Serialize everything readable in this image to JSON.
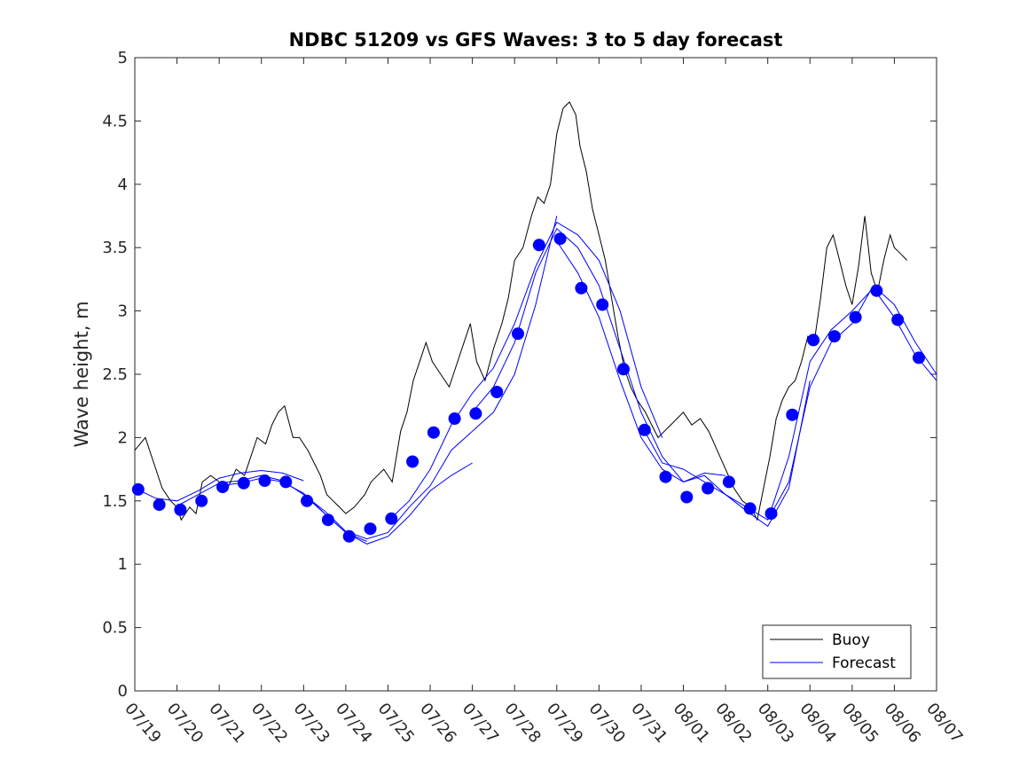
{
  "chart_data": {
    "type": "line",
    "title": "NDBC 51209 vs GFS Waves: 3 to 5 day forecast",
    "xlabel": "",
    "ylabel": "Wave height, m",
    "ylim": [
      0,
      5
    ],
    "y_ticks": [
      "0",
      "0.5",
      "1",
      "1.5",
      "2",
      "2.5",
      "3",
      "3.5",
      "4",
      "4.5",
      "5"
    ],
    "x_ticks": [
      "07/19",
      "07/20",
      "07/21",
      "07/22",
      "07/23",
      "07/24",
      "07/25",
      "07/26",
      "07/27",
      "07/28",
      "07/29",
      "07/30",
      "07/31",
      "08/01",
      "08/02",
      "08/03",
      "08/04",
      "08/05",
      "08/06",
      "08/07"
    ],
    "xlim_days": [
      0,
      19
    ],
    "legend": {
      "position": "bottom-right",
      "entries": [
        "Buoy",
        "Forecast"
      ]
    },
    "colors": {
      "buoy": "#000000",
      "forecast": "#0000ff"
    },
    "series": [
      {
        "name": "Buoy",
        "color": "#000000",
        "x_days": [
          0.0,
          0.25,
          0.45,
          0.65,
          0.85,
          1.0,
          1.1,
          1.3,
          1.45,
          1.6,
          1.8,
          2.0,
          2.2,
          2.4,
          2.6,
          2.8,
          2.9,
          3.1,
          3.25,
          3.4,
          3.55,
          3.75,
          3.9,
          4.1,
          4.25,
          4.4,
          4.55,
          4.7,
          4.85,
          5.0,
          5.2,
          5.45,
          5.6,
          5.75,
          5.9,
          6.1,
          6.2,
          6.3,
          6.45,
          6.6,
          6.75,
          6.9,
          7.05,
          7.25,
          7.45,
          7.6,
          7.8,
          7.95,
          8.1,
          8.3,
          8.5,
          8.7,
          8.85,
          9.0,
          9.2,
          9.4,
          9.55,
          9.7,
          9.85,
          10.0,
          10.15,
          10.3,
          10.45,
          10.55,
          10.7,
          10.85,
          11.0,
          11.15,
          11.3,
          11.45,
          11.6,
          11.75,
          11.9,
          12.1,
          12.25,
          12.4,
          12.55,
          12.7,
          12.85,
          13.0,
          13.2,
          13.4,
          13.6,
          13.8,
          14.0,
          14.2,
          14.4,
          14.6,
          14.75,
          14.9,
          15.05,
          15.2,
          15.35,
          15.5,
          15.65,
          15.8,
          15.95,
          16.1,
          16.25,
          16.4,
          16.55,
          16.7,
          16.85,
          17.0,
          17.15,
          17.3,
          17.45,
          17.6,
          17.75,
          17.9,
          18.0,
          18.15,
          18.3
        ],
        "values": [
          1.9,
          2.0,
          1.8,
          1.6,
          1.5,
          1.45,
          1.35,
          1.45,
          1.4,
          1.65,
          1.7,
          1.65,
          1.6,
          1.75,
          1.7,
          1.9,
          2.0,
          1.95,
          2.1,
          2.2,
          2.25,
          2.0,
          2.0,
          1.9,
          1.8,
          1.7,
          1.55,
          1.5,
          1.45,
          1.4,
          1.45,
          1.55,
          1.65,
          1.7,
          1.75,
          1.65,
          1.85,
          2.05,
          2.2,
          2.45,
          2.6,
          2.75,
          2.6,
          2.5,
          2.4,
          2.55,
          2.75,
          2.9,
          2.6,
          2.45,
          2.7,
          2.9,
          3.1,
          3.4,
          3.5,
          3.75,
          3.9,
          3.85,
          4.0,
          4.4,
          4.6,
          4.65,
          4.55,
          4.3,
          4.1,
          3.8,
          3.6,
          3.4,
          3.1,
          2.8,
          2.55,
          2.4,
          2.3,
          2.2,
          2.1,
          2.0,
          2.05,
          2.1,
          2.15,
          2.2,
          2.1,
          2.15,
          2.05,
          1.9,
          1.75,
          1.6,
          1.5,
          1.45,
          1.35,
          1.6,
          1.85,
          2.15,
          2.3,
          2.4,
          2.45,
          2.6,
          2.8,
          2.75,
          3.1,
          3.5,
          3.6,
          3.4,
          3.2,
          3.05,
          3.35,
          3.75,
          3.3,
          3.15,
          3.4,
          3.6,
          3.5,
          3.45,
          3.4
        ]
      },
      {
        "name": "Forecast",
        "color": "#0000ff",
        "markers_x_days": [
          0.08,
          0.58,
          1.08,
          1.58,
          2.08,
          2.58,
          3.08,
          3.58,
          4.08,
          4.58,
          5.08,
          5.58,
          6.08,
          6.58,
          7.08,
          7.58,
          8.08,
          8.58,
          9.08,
          9.58,
          10.08,
          10.58,
          11.08,
          11.58,
          12.08,
          12.58,
          13.08,
          13.58,
          14.08,
          14.58,
          15.08,
          15.58,
          16.08,
          16.58,
          17.08,
          17.58,
          18.08,
          18.58
        ],
        "markers": [
          1.59,
          1.47,
          1.43,
          1.5,
          1.61,
          1.64,
          1.66,
          1.65,
          1.5,
          1.35,
          1.22,
          1.28,
          1.36,
          1.81,
          2.04,
          2.15,
          2.19,
          2.36,
          2.82,
          3.52,
          3.57,
          3.18,
          3.05,
          2.54,
          2.06,
          1.69,
          1.53,
          1.6,
          1.65,
          1.44,
          1.4,
          2.18,
          2.77,
          2.8,
          2.95,
          3.16,
          2.93,
          2.63
        ],
        "runs": [
          {
            "x_days": [
              0.0,
              0.5,
              1.0,
              1.5,
              2.0,
              2.5,
              3.0,
              3.5,
              4.0
            ],
            "values": [
              1.6,
              1.52,
              1.5,
              1.58,
              1.68,
              1.72,
              1.74,
              1.72,
              1.66
            ]
          },
          {
            "x_days": [
              1.0,
              1.5,
              2.0,
              2.5,
              3.0,
              3.5,
              4.0,
              4.5,
              5.0,
              5.5
            ],
            "values": [
              1.46,
              1.55,
              1.64,
              1.66,
              1.7,
              1.66,
              1.55,
              1.4,
              1.25,
              1.18
            ]
          },
          {
            "x_days": [
              2.0,
              2.5,
              3.0,
              3.5,
              4.0,
              4.5,
              5.0,
              5.5,
              6.0,
              6.5,
              7.0,
              7.5,
              8.0
            ],
            "values": [
              1.62,
              1.64,
              1.68,
              1.65,
              1.56,
              1.4,
              1.25,
              1.16,
              1.22,
              1.38,
              1.58,
              1.7,
              1.8
            ]
          },
          {
            "x_days": [
              4.0,
              4.5,
              5.0,
              5.5,
              6.0,
              6.5,
              7.0,
              7.5,
              8.0,
              8.5,
              9.0,
              9.5,
              10.0
            ],
            "values": [
              1.55,
              1.42,
              1.26,
              1.2,
              1.25,
              1.45,
              1.62,
              1.9,
              2.05,
              2.2,
              2.5,
              3.05,
              3.75
            ]
          },
          {
            "x_days": [
              6.0,
              6.5,
              7.0,
              7.5,
              8.0,
              8.5,
              9.0,
              9.5,
              10.0,
              10.5,
              11.0,
              11.5,
              12.0,
              12.5
            ],
            "values": [
              1.34,
              1.5,
              1.75,
              2.1,
              2.35,
              2.55,
              2.9,
              3.35,
              3.7,
              3.6,
              3.4,
              3.0,
              2.4,
              2.0
            ]
          },
          {
            "x_days": [
              8.0,
              8.5,
              9.0,
              9.5,
              10.0,
              10.5,
              11.0,
              11.5,
              12.0,
              12.5,
              13.0,
              13.5,
              14.0
            ],
            "values": [
              2.2,
              2.4,
              2.75,
              3.3,
              3.65,
              3.5,
              3.2,
              2.7,
              2.2,
              1.85,
              1.65,
              1.72,
              1.7
            ]
          },
          {
            "x_days": [
              10.0,
              10.5,
              11.0,
              11.5,
              12.0,
              12.5,
              13.0,
              13.5,
              14.0,
              14.5,
              15.0,
              15.5,
              16.0
            ],
            "values": [
              3.55,
              3.3,
              2.95,
              2.45,
              2.0,
              1.75,
              1.65,
              1.7,
              1.55,
              1.42,
              1.3,
              1.6,
              2.45
            ]
          },
          {
            "x_days": [
              12.0,
              12.5,
              13.0,
              13.5,
              14.0,
              14.5,
              15.0,
              15.5,
              16.0,
              16.5,
              17.0,
              17.5,
              18.0,
              18.5,
              19.0
            ],
            "values": [
              2.1,
              1.8,
              1.75,
              1.65,
              1.55,
              1.45,
              1.35,
              1.65,
              2.4,
              2.75,
              2.9,
              3.2,
              3.05,
              2.75,
              2.5
            ]
          },
          {
            "x_days": [
              15.0,
              15.5,
              16.0,
              16.5,
              17.0,
              17.5,
              18.0,
              18.5,
              19.0
            ],
            "values": [
              1.35,
              1.85,
              2.6,
              2.85,
              3.0,
              3.18,
              2.95,
              2.65,
              2.45
            ]
          }
        ]
      }
    ]
  }
}
